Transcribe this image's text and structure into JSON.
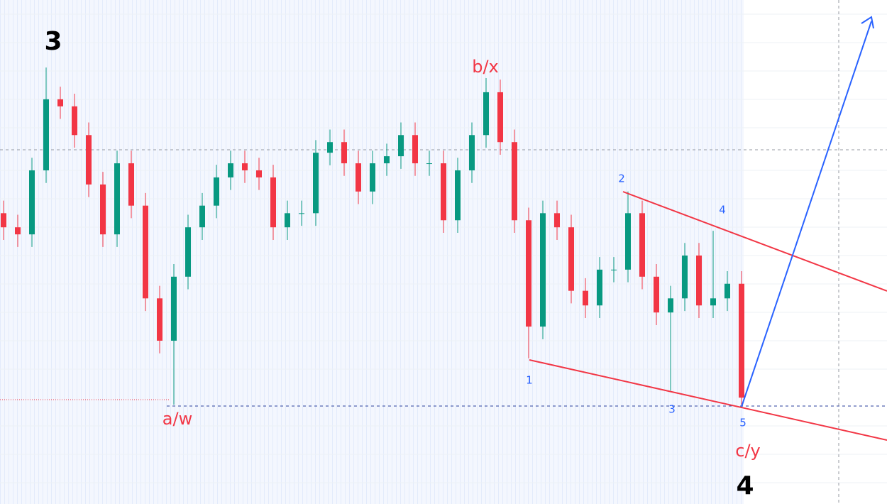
{
  "chart_data": {
    "type": "candlestick",
    "open": [
      57.7,
      54.9,
      53.5,
      66.2,
      80.3,
      78.9,
      73.2,
      63.4,
      53.5,
      67.6,
      59.2,
      40.8,
      32.4,
      45.1,
      54.9,
      59.2,
      64.8,
      67.6,
      66.2,
      64.8,
      54.9,
      57.7,
      57.7,
      69.7,
      71.8,
      67.6,
      62.0,
      67.6,
      69.0,
      73.2,
      67.6,
      67.6,
      56.3,
      66.2,
      73.2,
      81.7,
      71.8,
      56.3,
      35.2,
      57.7,
      54.9,
      42.3,
      39.4,
      46.5,
      46.5,
      57.7,
      45.1,
      38.0,
      40.8,
      49.3,
      39.4,
      40.8,
      43.7
    ],
    "high": [
      60.2,
      57.4,
      68.7,
      86.6,
      82.8,
      81.4,
      75.7,
      65.9,
      70.1,
      70.1,
      61.7,
      43.3,
      47.6,
      57.4,
      61.7,
      67.3,
      70.1,
      70.1,
      68.7,
      67.3,
      60.2,
      60.2,
      72.2,
      74.3,
      74.3,
      70.1,
      70.1,
      71.5,
      75.7,
      75.7,
      70.1,
      70.1,
      68.7,
      75.7,
      84.5,
      84.2,
      74.3,
      58.8,
      60.2,
      60.2,
      57.4,
      44.8,
      49.0,
      49.0,
      62.0,
      60.2,
      47.6,
      43.3,
      51.8,
      51.8,
      54.2,
      46.2,
      46.2
    ],
    "low": [
      52.4,
      51.0,
      51.0,
      63.7,
      76.4,
      70.7,
      60.9,
      51.0,
      51.0,
      56.7,
      38.3,
      29.9,
      19.7,
      42.6,
      52.4,
      56.7,
      62.3,
      63.7,
      62.3,
      52.4,
      52.4,
      55.2,
      55.2,
      67.2,
      65.1,
      59.5,
      59.5,
      65.1,
      66.5,
      65.1,
      65.1,
      53.8,
      53.8,
      63.7,
      70.7,
      69.3,
      53.8,
      28.9,
      32.7,
      52.4,
      39.8,
      36.9,
      36.9,
      44.0,
      44.0,
      42.6,
      35.5,
      22.5,
      38.3,
      36.9,
      36.9,
      38.3,
      19.4
    ],
    "close": [
      54.9,
      53.5,
      66.2,
      80.3,
      78.9,
      73.2,
      63.4,
      53.5,
      67.6,
      59.2,
      40.8,
      32.4,
      45.1,
      54.9,
      59.2,
      64.8,
      67.6,
      66.2,
      64.8,
      54.9,
      57.7,
      57.7,
      69.7,
      71.8,
      67.6,
      62.0,
      67.6,
      69.0,
      73.2,
      67.6,
      67.6,
      56.3,
      66.2,
      73.2,
      81.7,
      71.8,
      56.3,
      35.2,
      57.7,
      54.9,
      42.3,
      39.4,
      46.5,
      46.5,
      57.7,
      45.1,
      38.0,
      40.8,
      49.3,
      39.4,
      40.8,
      43.7,
      21.1
    ],
    "ylim": [
      0,
      100
    ],
    "up_color": "#089981",
    "down_color": "#f23645",
    "annotations": [
      "3",
      "b/x",
      "a/w",
      "2",
      "4",
      "1",
      "3",
      "5",
      "c/y",
      "4"
    ]
  }
}
